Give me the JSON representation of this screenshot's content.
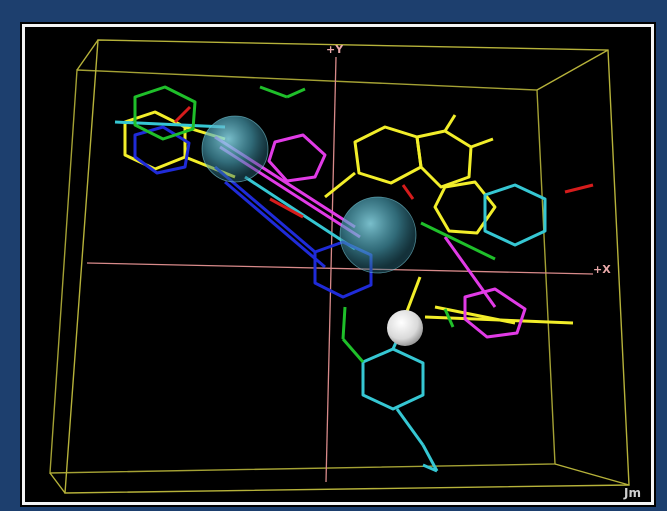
{
  "viewer": {
    "axes": {
      "y_label": "+Y",
      "x_label": "+X"
    },
    "watermark": "Jm"
  },
  "colors": {
    "background": "#000000",
    "frame_outer": "#1d3f6e",
    "bounding_box": "#b6b23a",
    "axes": "#d88a8a",
    "molecule_yellow": "#f2ee2a",
    "molecule_magenta": "#e13be6",
    "molecule_cyan": "#36c7d3",
    "molecule_blue": "#1f2bd8",
    "molecule_green": "#1fbf2a",
    "molecule_red": "#d61c1c",
    "pharmacophore_sphere": "#4aa3b8",
    "excluded_volume_sphere": "#e9e9e9"
  }
}
